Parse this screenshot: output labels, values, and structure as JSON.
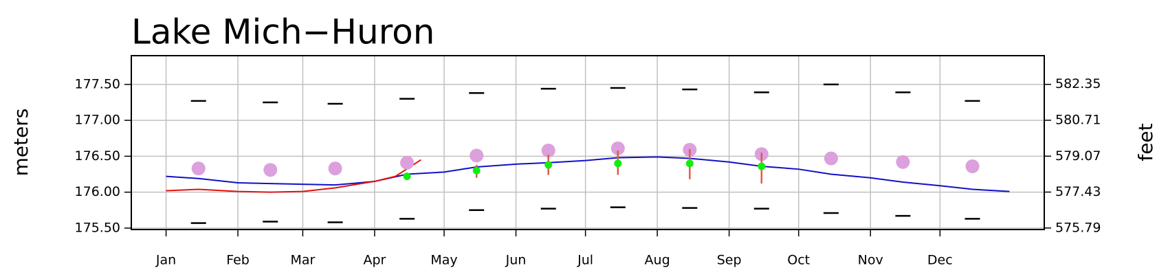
{
  "chart_data": {
    "type": "line",
    "title": "Lake Mich−Huron",
    "y_label": "meters",
    "y2_label": "feet",
    "xlim": [
      -14,
      380
    ],
    "xticks": [
      {
        "value": 1,
        "label": "Jan"
      },
      {
        "value": 32,
        "label": "Feb"
      },
      {
        "value": 60,
        "label": "Mar"
      },
      {
        "value": 91,
        "label": "Apr"
      },
      {
        "value": 121,
        "label": "May"
      },
      {
        "value": 152,
        "label": "Jun"
      },
      {
        "value": 182,
        "label": "Jul"
      },
      {
        "value": 213,
        "label": "Aug"
      },
      {
        "value": 244,
        "label": "Sep"
      },
      {
        "value": 274,
        "label": "Oct"
      },
      {
        "value": 305,
        "label": "Nov"
      },
      {
        "value": 335,
        "label": "Dec"
      }
    ],
    "ylim": [
      175.48,
      177.9
    ],
    "yticks": [
      {
        "value": 175.5,
        "label": "175.50"
      },
      {
        "value": 176,
        "label": "176.00"
      },
      {
        "value": 176.5,
        "label": "176.50"
      },
      {
        "value": 177,
        "label": "177.00"
      },
      {
        "value": 177.5,
        "label": "177.50"
      }
    ],
    "y2lim": [
      575.72,
      583.66
    ],
    "y2ticks": [
      575.79,
      577.43,
      579.07,
      580.71,
      582.35
    ],
    "grid": true,
    "series": [
      {
        "style": "line",
        "color": "#1010c8",
        "x": [
          1,
          15,
          32,
          46,
          60,
          74,
          91,
          105,
          121,
          135,
          152,
          166,
          182,
          196,
          213,
          227,
          244,
          258,
          274,
          288,
          305,
          319,
          335,
          349,
          365
        ],
        "values": [
          176.22,
          176.19,
          176.13,
          176.12,
          176.11,
          176.1,
          176.15,
          176.25,
          176.28,
          176.35,
          176.39,
          176.41,
          176.44,
          176.48,
          176.49,
          176.47,
          176.42,
          176.36,
          176.32,
          176.25,
          176.2,
          176.14,
          176.09,
          176.04,
          176.01
        ]
      },
      {
        "style": "line",
        "color": "#e01010",
        "x": [
          1,
          15,
          32,
          46,
          60,
          74,
          91,
          100,
          111
        ],
        "values": [
          176.02,
          176.04,
          176.01,
          176.0,
          176.01,
          176.06,
          176.15,
          176.22,
          176.45
        ]
      },
      {
        "style": "dot",
        "color": "#dca0dc",
        "x": [
          15,
          46,
          74,
          105,
          135,
          166,
          196,
          227,
          258,
          288,
          319,
          349
        ],
        "values": [
          176.33,
          176.31,
          176.33,
          176.41,
          176.51,
          176.58,
          176.61,
          176.59,
          176.53,
          176.47,
          176.42,
          176.36
        ]
      },
      {
        "style": "dash",
        "color": "#000000",
        "x": [
          15,
          46,
          74,
          105,
          135,
          166,
          196,
          227,
          258,
          288,
          319,
          349
        ],
        "values": [
          177.27,
          177.25,
          177.23,
          177.3,
          177.38,
          177.44,
          177.45,
          177.43,
          177.39,
          177.5,
          177.39,
          177.27
        ]
      },
      {
        "style": "dash",
        "color": "#000000",
        "x": [
          15,
          46,
          74,
          105,
          135,
          166,
          196,
          227,
          258,
          288,
          319,
          349
        ],
        "values": [
          175.57,
          175.59,
          175.58,
          175.63,
          175.75,
          175.77,
          175.79,
          175.78,
          175.77,
          175.71,
          175.67,
          175.63
        ]
      },
      {
        "style": "errorbar",
        "color": "#e05a4a",
        "x": [
          135,
          166,
          196,
          227,
          258
        ],
        "low": [
          176.2,
          176.24,
          176.24,
          176.18,
          176.12
        ],
        "high": [
          176.38,
          176.52,
          176.58,
          176.6,
          176.55
        ]
      },
      {
        "style": "smalldot",
        "color": "#10ee10",
        "x": [
          105,
          135,
          166,
          196,
          227,
          258
        ],
        "values": [
          176.22,
          176.3,
          176.38,
          176.4,
          176.4,
          176.36
        ]
      }
    ]
  }
}
